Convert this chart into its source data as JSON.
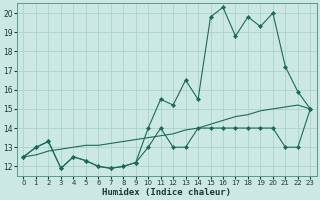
{
  "xlabel": "Humidex (Indice chaleur)",
  "background_color": "#cce8e4",
  "grid_color": "#aad4cc",
  "line_color": "#1a6b5a",
  "xlim": [
    -0.5,
    23.5
  ],
  "ylim": [
    11.5,
    20.5
  ],
  "yticks": [
    12,
    13,
    14,
    15,
    16,
    17,
    18,
    19,
    20
  ],
  "xticks": [
    0,
    1,
    2,
    3,
    4,
    5,
    6,
    7,
    8,
    9,
    10,
    11,
    12,
    13,
    14,
    15,
    16,
    17,
    18,
    19,
    20,
    21,
    22,
    23
  ],
  "series_lower": [
    12.5,
    13.0,
    13.3,
    11.9,
    12.5,
    12.3,
    12.0,
    11.9,
    12.0,
    12.2,
    13.0,
    14.0,
    13.0,
    13.0,
    14.0,
    14.0,
    14.0,
    14.0,
    14.0,
    14.0,
    14.0,
    13.0,
    13.0,
    15.0
  ],
  "series_upper": [
    12.5,
    13.0,
    13.3,
    11.9,
    12.5,
    12.3,
    12.0,
    11.9,
    12.0,
    12.2,
    14.0,
    15.5,
    15.2,
    16.5,
    15.5,
    19.8,
    20.3,
    18.8,
    19.8,
    19.3,
    20.0,
    17.2,
    15.9,
    15.0
  ],
  "series_trend": [
    12.5,
    12.6,
    12.8,
    12.9,
    13.0,
    13.1,
    13.1,
    13.2,
    13.3,
    13.4,
    13.5,
    13.6,
    13.7,
    13.9,
    14.0,
    14.2,
    14.4,
    14.6,
    14.7,
    14.9,
    15.0,
    15.1,
    15.2,
    15.0
  ]
}
